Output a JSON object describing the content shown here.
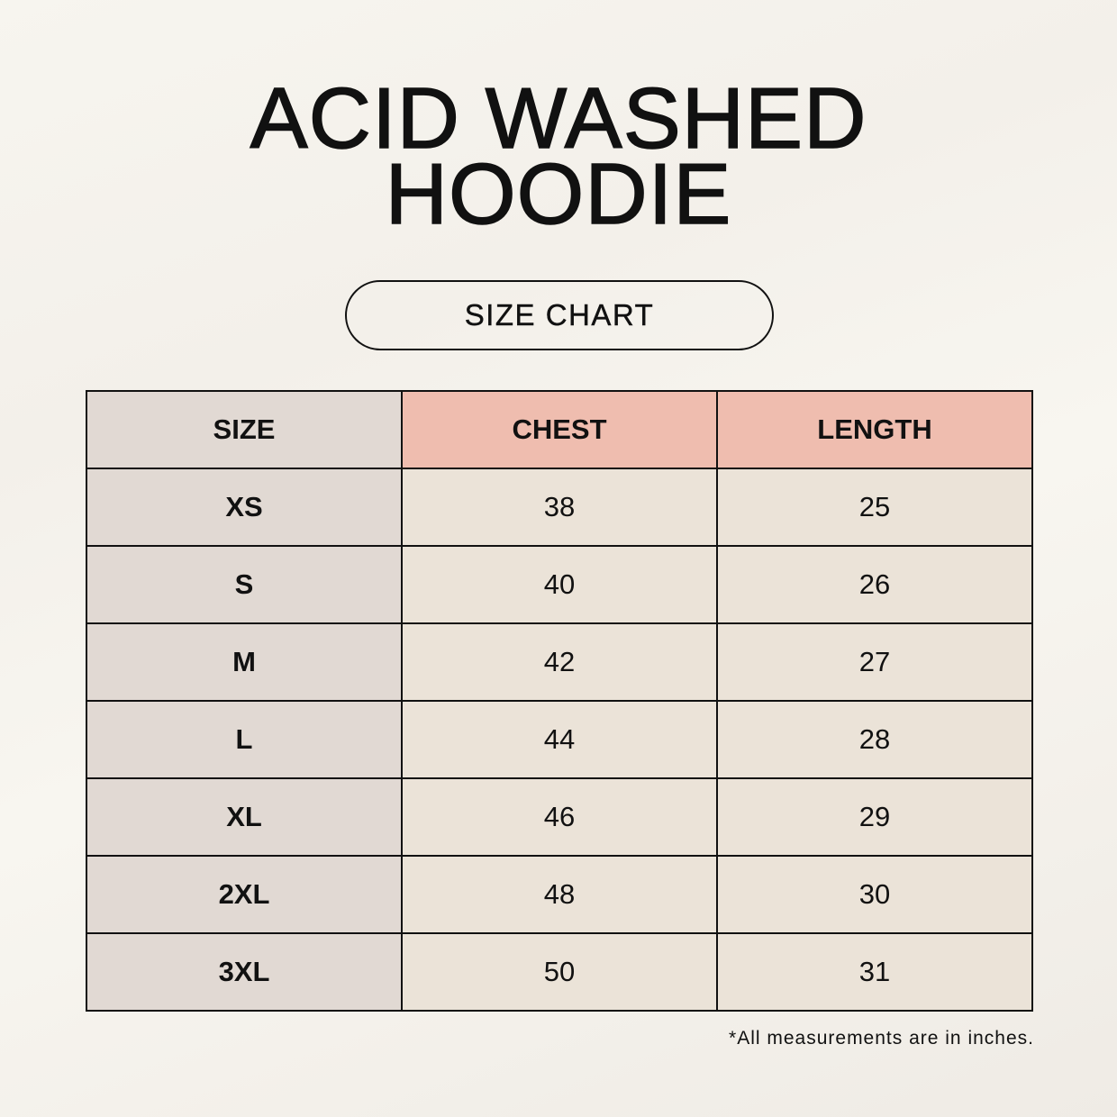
{
  "title_line1": "ACID WASHED",
  "title_line2": "HOODIE",
  "subtitle": "SIZE CHART",
  "table": {
    "headers": [
      "SIZE",
      "CHEST",
      "LENGTH"
    ],
    "rows": [
      [
        "XS",
        "38",
        "25"
      ],
      [
        "S",
        "40",
        "26"
      ],
      [
        "M",
        "42",
        "27"
      ],
      [
        "L",
        "44",
        "28"
      ],
      [
        "XL",
        "46",
        "29"
      ],
      [
        "2XL",
        "48",
        "30"
      ],
      [
        "3XL",
        "50",
        "31"
      ]
    ]
  },
  "note": "*All measurements are in inches.",
  "colors": {
    "size_column": "#e1d9d3",
    "header_accent": "#efbdaf",
    "cells": "#ebe3d8"
  }
}
